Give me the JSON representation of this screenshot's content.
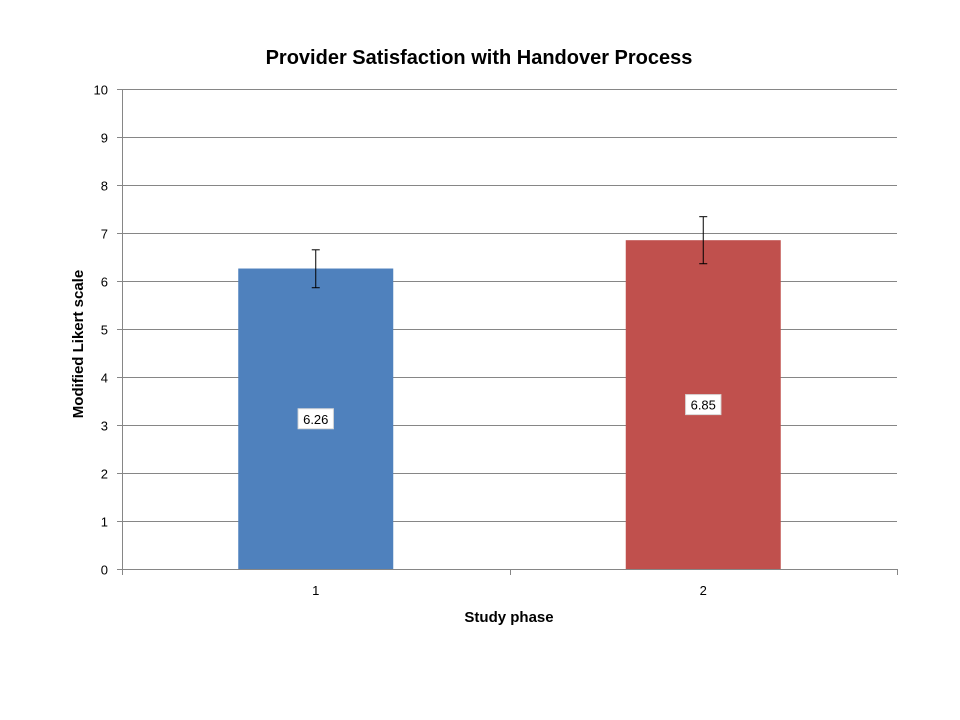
{
  "chart_data": {
    "type": "bar",
    "title": "Provider Satisfaction with Handover Process",
    "xlabel": "Study phase",
    "ylabel": "Modified Likert scale",
    "categories": [
      "1",
      "2"
    ],
    "series": [
      {
        "values": [
          6.26,
          6.85
        ],
        "error_high": [
          6.65,
          7.34
        ],
        "error_low": [
          5.86,
          6.36
        ],
        "data_labels": [
          "6.26",
          "6.85"
        ],
        "colors": [
          "#4f81bd",
          "#c0504d"
        ]
      }
    ],
    "ylim": [
      0,
      10
    ],
    "yticks": [
      0,
      1,
      2,
      3,
      4,
      5,
      6,
      7,
      8,
      9,
      10
    ],
    "ytick_labels": [
      "0",
      "1",
      "2",
      "3",
      "4",
      "5",
      "6",
      "7",
      "8",
      "9",
      "10"
    ],
    "grid": true,
    "legend": "none",
    "colors": {
      "gridline": "#868686",
      "axis": "#868686",
      "error_bar": "#000000"
    }
  }
}
